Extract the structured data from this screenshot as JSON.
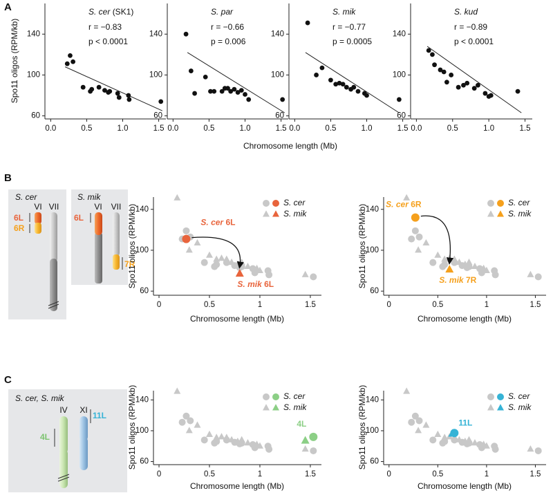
{
  "panel_labels": [
    "A",
    "B",
    "C"
  ],
  "diagrams": {
    "b_cer": {
      "title": "S. cer",
      "chromosomes": [
        "VI",
        "VII"
      ],
      "arms": [
        "6L",
        "6R"
      ]
    },
    "b_mik": {
      "title": "S. mik",
      "chromosomes": [
        "VI",
        "VII"
      ],
      "arms": [
        "6L",
        "7R"
      ]
    },
    "c": {
      "title": "S. cer, S. mik",
      "chromosomes": [
        "IV",
        "XI"
      ],
      "arms": [
        "4L",
        "11L"
      ]
    }
  },
  "chart_data": [
    {
      "type": "scatter",
      "title": "S. cer",
      "title_note": "(SK1)",
      "annotations": [
        "r = −0.83",
        "p < 0.0001"
      ],
      "ylabel": "Spo11 oligos (RPM/kb)",
      "xlabel": "Chromosome length (Mb)",
      "xlim": [
        -0.08,
        1.6
      ],
      "ylim": [
        57,
        170
      ],
      "xticks": [
        {
          "value": 0,
          "label": "0.0"
        },
        0.5,
        {
          "value": 1,
          "label": "1.0"
        },
        1.5
      ],
      "yticks": [
        60,
        100,
        140
      ],
      "series": [
        {
          "marker": "circle",
          "color": "#111111",
          "x": [
            0.23,
            0.27,
            0.31,
            0.45,
            0.55,
            0.57,
            0.67,
            0.75,
            0.8,
            0.82,
            0.93,
            0.95,
            1.08,
            1.09,
            1.53
          ],
          "values": [
            111,
            119,
            113,
            88,
            84,
            86,
            88,
            85,
            83,
            84,
            82,
            78,
            80,
            76,
            74
          ]
        }
      ],
      "fit": {
        "x": [
          0.2,
          1.55
        ],
        "values": [
          108,
          65
        ]
      }
    },
    {
      "type": "scatter",
      "title": "S. par",
      "annotations": [
        "r = −0.66",
        "p = 0.006"
      ],
      "xlim": [
        -0.08,
        1.6
      ],
      "ylim": [
        57,
        170
      ],
      "xticks": [
        {
          "value": 0,
          "label": "0.0"
        },
        0.5,
        {
          "value": 1,
          "label": "1.0"
        },
        1.5
      ],
      "yticks": [
        60,
        100,
        140
      ],
      "series": [
        {
          "marker": "circle",
          "color": "#111111",
          "x": [
            0.18,
            0.25,
            0.3,
            0.45,
            0.52,
            0.57,
            0.68,
            0.72,
            0.76,
            0.8,
            0.85,
            0.9,
            0.95,
            1.0,
            1.05,
            1.52
          ],
          "values": [
            140,
            104,
            82,
            98,
            84,
            84,
            84,
            87,
            87,
            84,
            86,
            83,
            85,
            81,
            76,
            76
          ]
        }
      ],
      "fit": {
        "x": [
          0.2,
          1.55
        ],
        "values": [
          122,
          63
        ]
      }
    },
    {
      "type": "scatter",
      "title": "S. mik",
      "annotations": [
        "r = −0.77",
        "p = 0.0005"
      ],
      "xlim": [
        -0.08,
        1.6
      ],
      "ylim": [
        57,
        170
      ],
      "xticks": [
        {
          "value": 0,
          "label": "0.0"
        },
        0.5,
        {
          "value": 1,
          "label": "1.0"
        },
        1.5
      ],
      "yticks": [
        60,
        100,
        140
      ],
      "series": [
        {
          "marker": "circle",
          "color": "#111111",
          "x": [
            0.18,
            0.3,
            0.38,
            0.5,
            0.57,
            0.62,
            0.67,
            0.72,
            0.78,
            0.82,
            0.88,
            0.97,
            1.0,
            1.45
          ],
          "values": [
            151,
            100,
            107,
            95,
            91,
            92,
            91,
            88,
            86,
            88,
            84,
            82,
            80,
            76
          ]
        }
      ],
      "fit": {
        "x": [
          0.15,
          1.45
        ],
        "values": [
          122,
          63
        ]
      }
    },
    {
      "type": "scatter",
      "title": "S. kud",
      "annotations": [
        "r = −0.89",
        "p < 0.0001"
      ],
      "xlim": [
        -0.08,
        1.6
      ],
      "ylim": [
        57,
        170
      ],
      "xticks": [
        {
          "value": 0,
          "label": "0.0"
        },
        0.5,
        {
          "value": 1,
          "label": "1.0"
        },
        1.5
      ],
      "yticks": [
        60,
        100,
        140
      ],
      "series": [
        {
          "marker": "circle",
          "color": "#111111",
          "x": [
            0.17,
            0.22,
            0.25,
            0.33,
            0.38,
            0.42,
            0.48,
            0.58,
            0.65,
            0.7,
            0.8,
            0.85,
            0.95,
            1.0,
            1.03,
            1.4
          ],
          "values": [
            124,
            120,
            110,
            105,
            103,
            93,
            100,
            88,
            90,
            92,
            87,
            90,
            82,
            79,
            80,
            84
          ]
        }
      ],
      "fit": {
        "x": [
          0.15,
          1.45
        ],
        "values": [
          128,
          63
        ]
      }
    },
    {
      "type": "scatter",
      "ylabel": "Spo11 oligos (RPM/kb)",
      "xlabel": "Chromosome length (Mb)",
      "xlim": [
        -0.055,
        1.61
      ],
      "ylim": [
        56,
        152
      ],
      "xticks": [
        0,
        0.5,
        1,
        1.5
      ],
      "yticks": [
        60,
        100,
        140
      ],
      "legend": "upper right",
      "highlight_color": "#e8643c",
      "series": [
        {
          "name": "S. cer",
          "marker": "circle",
          "color": "#c8c8c8",
          "x": [
            0.23,
            0.27,
            0.31,
            0.45,
            0.55,
            0.57,
            0.67,
            0.75,
            0.8,
            0.82,
            0.93,
            0.95,
            1.08,
            1.09,
            1.53
          ],
          "values": [
            111,
            119,
            113,
            88,
            84,
            86,
            88,
            85,
            83,
            84,
            82,
            78,
            80,
            76,
            74
          ]
        },
        {
          "name": "S. mik",
          "marker": "triangle",
          "color": "#c8c8c8",
          "x": [
            0.18,
            0.3,
            0.38,
            0.5,
            0.57,
            0.62,
            0.67,
            0.72,
            0.78,
            0.82,
            0.88,
            0.97,
            1.0,
            1.45
          ],
          "values": [
            151,
            100,
            107,
            95,
            91,
            92,
            91,
            88,
            86,
            88,
            84,
            82,
            80,
            76
          ]
        }
      ],
      "highlights": [
        {
          "marker": "circle",
          "x": 0.27,
          "value": 111,
          "label": "S. cer",
          "label_suffix": "6L"
        },
        {
          "marker": "triangle",
          "x": 0.8,
          "value": 77,
          "label": "S. mik",
          "label_suffix": "6L"
        }
      ]
    },
    {
      "type": "scatter",
      "ylabel": "Spo11 oligos (RPM/kb)",
      "xlabel": "Chromosome length (Mb)",
      "xlim": [
        -0.055,
        1.61
      ],
      "ylim": [
        56,
        152
      ],
      "xticks": [
        0,
        0.5,
        1,
        1.5
      ],
      "yticks": [
        60,
        100,
        140
      ],
      "legend": "upper right",
      "highlight_color": "#f5a01c",
      "series": [
        {
          "name": "S. cer",
          "marker": "circle",
          "color": "#c8c8c8",
          "x": [
            0.23,
            0.27,
            0.31,
            0.45,
            0.55,
            0.57,
            0.67,
            0.75,
            0.8,
            0.82,
            0.93,
            0.95,
            1.08,
            1.09,
            1.53
          ],
          "values": [
            111,
            119,
            113,
            88,
            84,
            86,
            88,
            85,
            83,
            84,
            82,
            78,
            80,
            76,
            74
          ]
        },
        {
          "name": "S. mik",
          "marker": "triangle",
          "color": "#c8c8c8",
          "x": [
            0.18,
            0.3,
            0.38,
            0.5,
            0.57,
            0.62,
            0.67,
            0.72,
            0.78,
            0.82,
            0.88,
            0.97,
            1.0,
            1.45
          ],
          "values": [
            151,
            100,
            107,
            95,
            91,
            92,
            91,
            88,
            86,
            88,
            84,
            82,
            80,
            76
          ]
        }
      ],
      "highlights": [
        {
          "marker": "circle",
          "x": 0.27,
          "value": 132,
          "label": "S. cer",
          "label_suffix": "6R"
        },
        {
          "marker": "triangle",
          "x": 0.62,
          "value": 81,
          "label": "S. mik",
          "label_suffix": "7R"
        }
      ]
    },
    {
      "type": "scatter",
      "ylabel": "Spo11 oligos (RPM/kb)",
      "xlabel": "Chromosome length (Mb)",
      "xlim": [
        -0.055,
        1.61
      ],
      "ylim": [
        56,
        152
      ],
      "xticks": [
        0,
        0.5,
        1,
        1.5
      ],
      "yticks": [
        60,
        100,
        140
      ],
      "legend": "upper right",
      "highlight_color": "#8ccf86",
      "series": [
        {
          "name": "S. cer",
          "marker": "circle",
          "color": "#c8c8c8",
          "x": [
            0.23,
            0.27,
            0.31,
            0.45,
            0.55,
            0.57,
            0.67,
            0.75,
            0.8,
            0.82,
            0.93,
            0.95,
            1.08,
            1.09,
            1.53
          ],
          "values": [
            111,
            119,
            113,
            88,
            84,
            86,
            88,
            85,
            83,
            84,
            82,
            78,
            80,
            76,
            74
          ]
        },
        {
          "name": "S. mik",
          "marker": "triangle",
          "color": "#c8c8c8",
          "x": [
            0.18,
            0.3,
            0.38,
            0.5,
            0.57,
            0.62,
            0.67,
            0.72,
            0.78,
            0.82,
            0.88,
            0.97,
            1.0,
            1.45
          ],
          "values": [
            151,
            100,
            107,
            95,
            91,
            92,
            91,
            88,
            86,
            88,
            84,
            82,
            80,
            76
          ]
        }
      ],
      "highlights": [
        {
          "marker": "circle",
          "x": 1.53,
          "value": 92,
          "label": "4L"
        },
        {
          "marker": "triangle",
          "x": 1.45,
          "value": 87
        }
      ]
    },
    {
      "type": "scatter",
      "ylabel": "Spo11 oligos (RPM/kb)",
      "xlabel": "Chromosome length (Mb)",
      "xlim": [
        -0.055,
        1.61
      ],
      "ylim": [
        56,
        152
      ],
      "xticks": [
        0,
        0.5,
        1,
        1.5
      ],
      "yticks": [
        60,
        100,
        140
      ],
      "legend": "upper right",
      "highlight_color": "#35b3d6",
      "series": [
        {
          "name": "S. cer",
          "marker": "circle",
          "color": "#c8c8c8",
          "x": [
            0.23,
            0.27,
            0.31,
            0.45,
            0.55,
            0.57,
            0.67,
            0.75,
            0.8,
            0.82,
            0.93,
            0.95,
            1.08,
            1.09,
            1.53
          ],
          "values": [
            111,
            119,
            113,
            88,
            84,
            86,
            88,
            85,
            83,
            84,
            82,
            78,
            80,
            76,
            74
          ]
        },
        {
          "name": "S. mik",
          "marker": "triangle",
          "color": "#c8c8c8",
          "x": [
            0.18,
            0.3,
            0.38,
            0.5,
            0.57,
            0.62,
            0.67,
            0.72,
            0.78,
            0.82,
            0.88,
            0.97,
            1.0,
            1.45
          ],
          "values": [
            151,
            100,
            107,
            95,
            91,
            92,
            91,
            88,
            86,
            88,
            84,
            82,
            80,
            76
          ]
        }
      ],
      "highlights": [
        {
          "marker": "circle",
          "x": 0.67,
          "value": 97,
          "label": "11L"
        },
        {
          "marker": "triangle",
          "x": 0.65,
          "value": 96
        }
      ]
    }
  ]
}
